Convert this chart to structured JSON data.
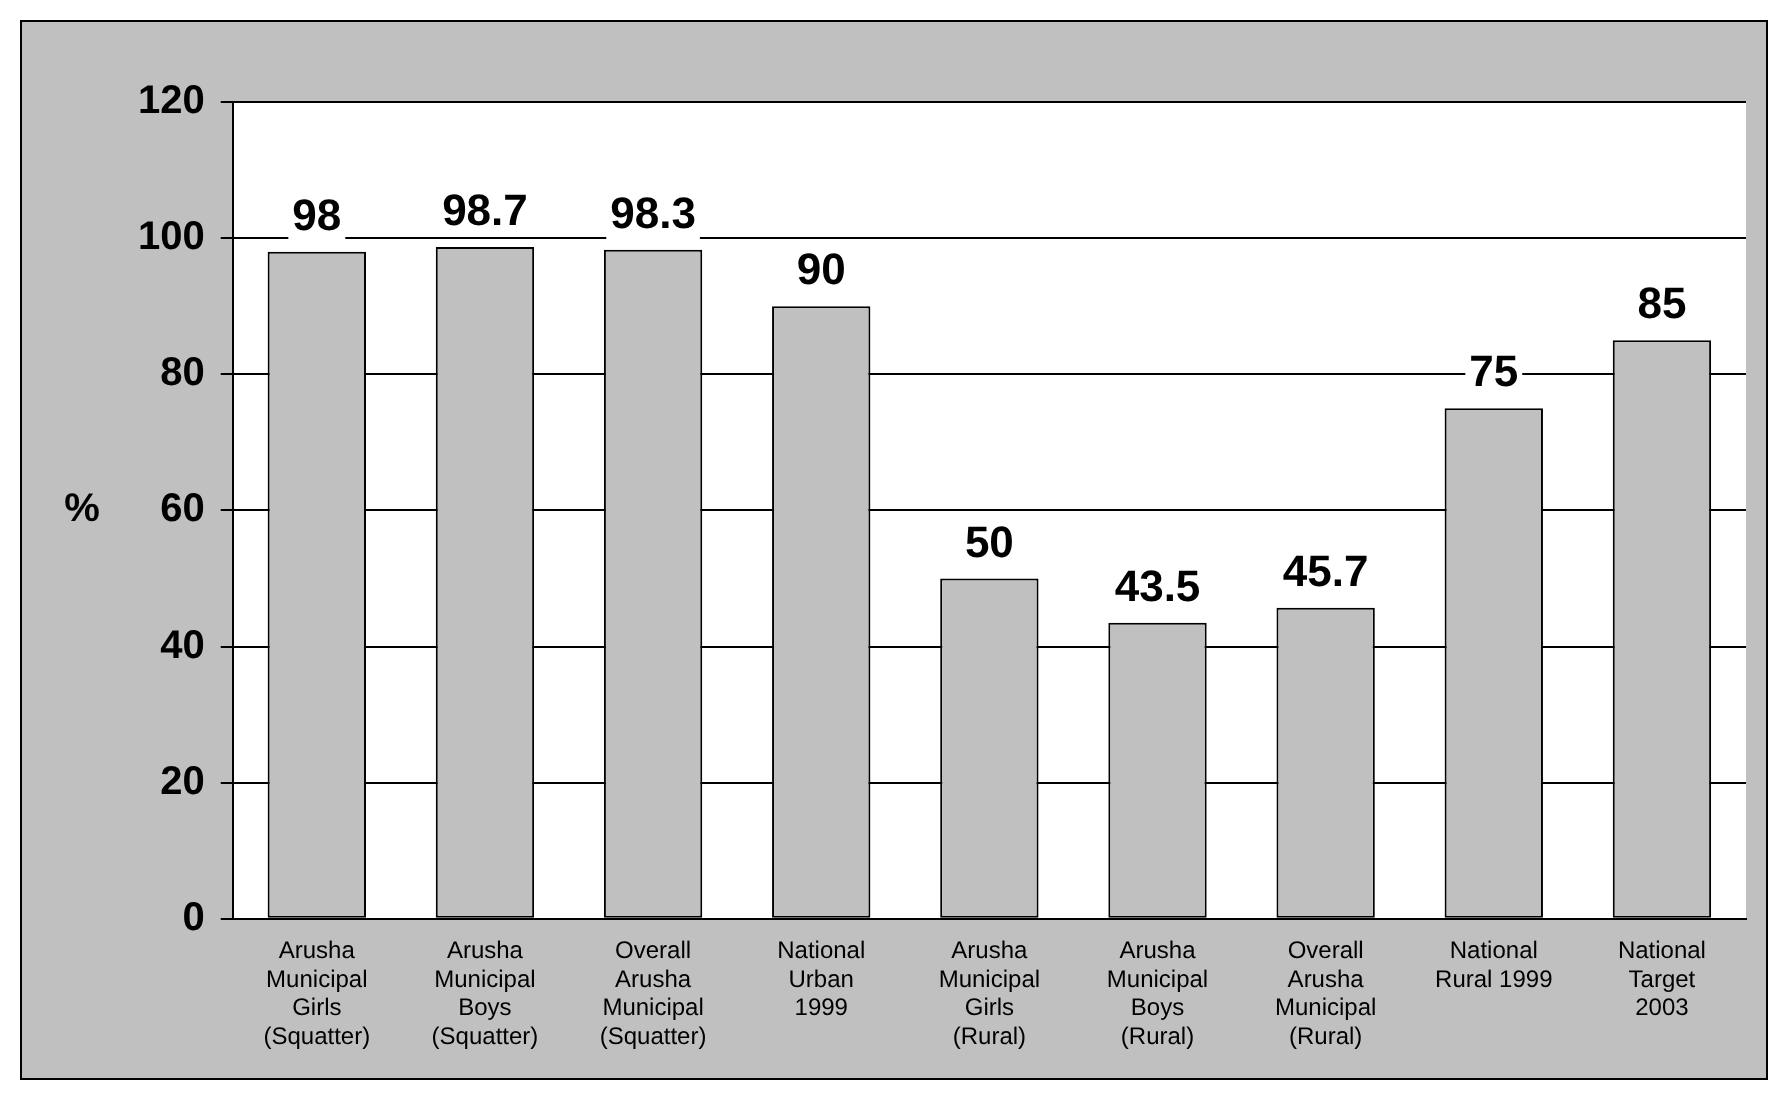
{
  "chart_data": {
    "type": "bar",
    "ylabel": "%",
    "categories": [
      "Arusha\nMunicipal\nGirls\n(Squatter)",
      "Arusha\nMunicipal\nBoys\n(Squatter)",
      "Overall\nArusha\nMunicipal\n(Squatter)",
      "National\nUrban\n1999",
      "Arusha\nMunicipal\nGirls\n(Rural)",
      "Arusha\nMunicipal\nBoys\n(Rural)",
      "Overall\nArusha\nMunicipal\n(Rural)",
      "National\nRural 1999",
      "National\nTarget\n2003"
    ],
    "values": [
      98,
      98.7,
      98.3,
      90,
      50,
      43.5,
      45.7,
      75,
      85
    ],
    "color": "#c0c0c0",
    "ylim": [
      0,
      120
    ],
    "yticks": [
      0,
      20,
      40,
      60,
      80,
      100,
      120
    ],
    "grid": "y",
    "legend": false,
    "data_labels": true
  }
}
